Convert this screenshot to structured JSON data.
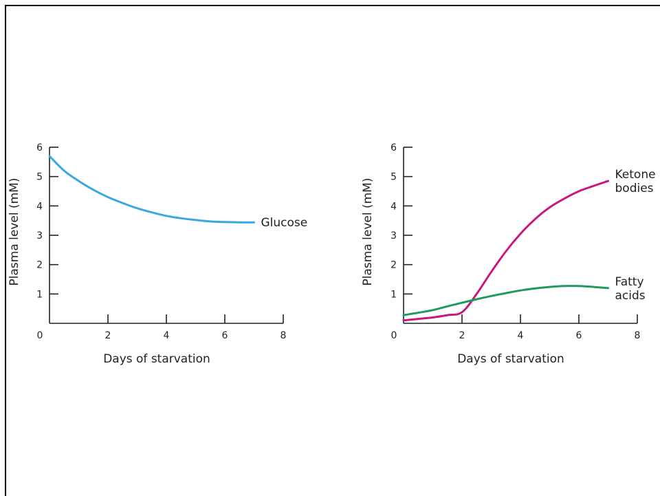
{
  "chart_data": [
    {
      "type": "line",
      "xlabel": "Days of starvation",
      "ylabel": "Plasma level (mM)",
      "xlim": [
        0,
        8
      ],
      "ylim": [
        0,
        6
      ],
      "xticks": [
        "0",
        "2",
        "4",
        "6",
        "8"
      ],
      "yticks": [
        "1",
        "2",
        "3",
        "4",
        "5",
        "6"
      ],
      "grid": false,
      "series": [
        {
          "name": "Glucose",
          "label_lines": [
            "Glucose"
          ],
          "color": "#3aa8de",
          "x": [
            0,
            0.5,
            1,
            1.5,
            2,
            2.5,
            3,
            3.5,
            4,
            4.5,
            5,
            5.5,
            6,
            6.5,
            7
          ],
          "y": [
            5.7,
            5.2,
            4.85,
            4.55,
            4.3,
            4.1,
            3.92,
            3.78,
            3.66,
            3.58,
            3.52,
            3.47,
            3.45,
            3.44,
            3.44
          ]
        }
      ]
    },
    {
      "type": "line",
      "xlabel": "Days of starvation",
      "ylabel": "Plasma level (mM)",
      "xlim": [
        0,
        8
      ],
      "ylim": [
        0,
        6
      ],
      "xticks": [
        "0",
        "2",
        "4",
        "6",
        "8"
      ],
      "yticks": [
        "1",
        "2",
        "3",
        "4",
        "5",
        "6"
      ],
      "grid": false,
      "series": [
        {
          "name": "Ketone bodies",
          "label_lines": [
            "Ketone",
            "bodies"
          ],
          "color": "#c8187c",
          "x": [
            0,
            0.5,
            1,
            1.5,
            2,
            2.5,
            3,
            3.5,
            4,
            4.5,
            5,
            5.5,
            6,
            6.5,
            7
          ],
          "y": [
            0.1,
            0.15,
            0.2,
            0.28,
            0.38,
            1.0,
            1.75,
            2.45,
            3.05,
            3.55,
            3.95,
            4.25,
            4.5,
            4.68,
            4.85
          ]
        },
        {
          "name": "Fatty acids",
          "label_lines": [
            "Fatty",
            "acids"
          ],
          "color": "#1f9a5c",
          "x": [
            0,
            0.5,
            1,
            1.5,
            2,
            2.5,
            3,
            3.5,
            4,
            4.5,
            5,
            5.5,
            6,
            6.5,
            7
          ],
          "y": [
            0.28,
            0.36,
            0.45,
            0.58,
            0.7,
            0.82,
            0.93,
            1.03,
            1.12,
            1.19,
            1.24,
            1.27,
            1.27,
            1.24,
            1.2
          ]
        }
      ]
    }
  ]
}
